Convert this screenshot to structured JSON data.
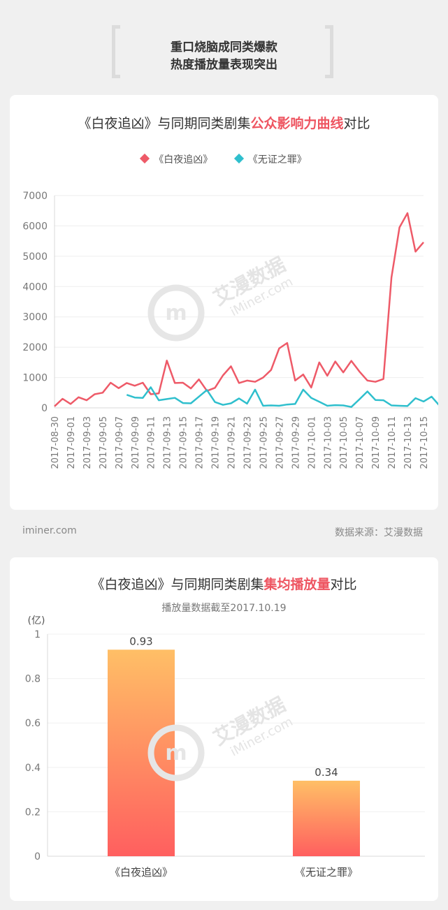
{
  "header": {
    "line1": "重口烧脑成同类爆款",
    "line2": "热度播放量表现突出"
  },
  "chart1": {
    "title_pre": "《白夜追凶》与同期同类剧集",
    "title_hl": "公众影响力曲线",
    "title_post": "对比"
  },
  "chart2": {
    "title_pre": "《白夜追凶》与同期同类剧集",
    "title_hl": "集均播放量",
    "title_post": "对比",
    "subtitle": "播放量数据截至2017.10.19"
  },
  "footer": {
    "left": "iminer.com",
    "right": "数据来源：艾漫数据"
  },
  "watermark": {
    "cn": "艾漫数据",
    "en": "iMiner.com"
  },
  "colors": {
    "series1": "#ee5a68",
    "series2": "#2fbfcd",
    "bar_top": "#ffbf66",
    "bar_bottom": "#ff5f5f",
    "highlight": "#ee5561"
  },
  "chart_data": [
    {
      "type": "line",
      "title": "《白夜追凶》与同期同类剧集公众影响力曲线对比",
      "x_labels": [
        "2017-08-30",
        "2017-09-01",
        "2017-09-03",
        "2017-09-05",
        "2017-09-07",
        "2017-09-09",
        "2017-09-11",
        "2017-09-13",
        "2017-09-15",
        "2017-09-17",
        "2017-09-19",
        "2017-09-21",
        "2017-09-23",
        "2017-09-25",
        "2017-09-27",
        "2017-09-29",
        "2017-10-01",
        "2017-10-03",
        "2017-10-05",
        "2017-10-07",
        "2017-10-09",
        "2017-10-11",
        "2017-10-13",
        "2017-10-15"
      ],
      "x_start": "2017-08-30",
      "ylim": [
        0,
        7000
      ],
      "yticks": [
        0,
        1000,
        2000,
        3000,
        4000,
        5000,
        6000,
        7000
      ],
      "legend_position": "top-center",
      "grid": true,
      "series": [
        {
          "name": "《白夜追凶》",
          "values": [
            50,
            300,
            130,
            350,
            250,
            450,
            500,
            830,
            650,
            820,
            730,
            830,
            450,
            480,
            1560,
            820,
            830,
            640,
            940,
            560,
            660,
            1070,
            1370,
            820,
            900,
            860,
            1000,
            1250,
            1960,
            2140,
            900,
            1100,
            670,
            1500,
            1060,
            1530,
            1170,
            1550,
            1200,
            900,
            860,
            950,
            4300,
            5950,
            6420,
            5150,
            5460
          ]
        },
        {
          "name": "《无证之罪》",
          "offset": 9,
          "values": [
            430,
            340,
            330,
            680,
            250,
            290,
            330,
            160,
            150,
            370,
            590,
            190,
            100,
            150,
            310,
            140,
            600,
            70,
            80,
            70,
            110,
            130,
            600,
            330,
            200,
            70,
            90,
            80,
            30,
            280,
            540,
            260,
            250,
            80,
            70,
            60,
            320,
            210,
            370,
            70
          ]
        }
      ]
    },
    {
      "type": "bar",
      "title": "《白夜追凶》与同期同类剧集集均播放量对比",
      "subtitle": "播放量数据截至2017.10.19",
      "unit": "(亿)",
      "categories": [
        "《白夜追凶》",
        "《无证之罪》"
      ],
      "values": [
        0.93,
        0.34
      ],
      "value_labels": [
        "0.93",
        "0.34"
      ],
      "ylim": [
        0,
        1
      ],
      "yticks": [
        "0",
        "0.2",
        "0.4",
        "0.6",
        "0.8",
        "1"
      ],
      "grid": true
    }
  ]
}
